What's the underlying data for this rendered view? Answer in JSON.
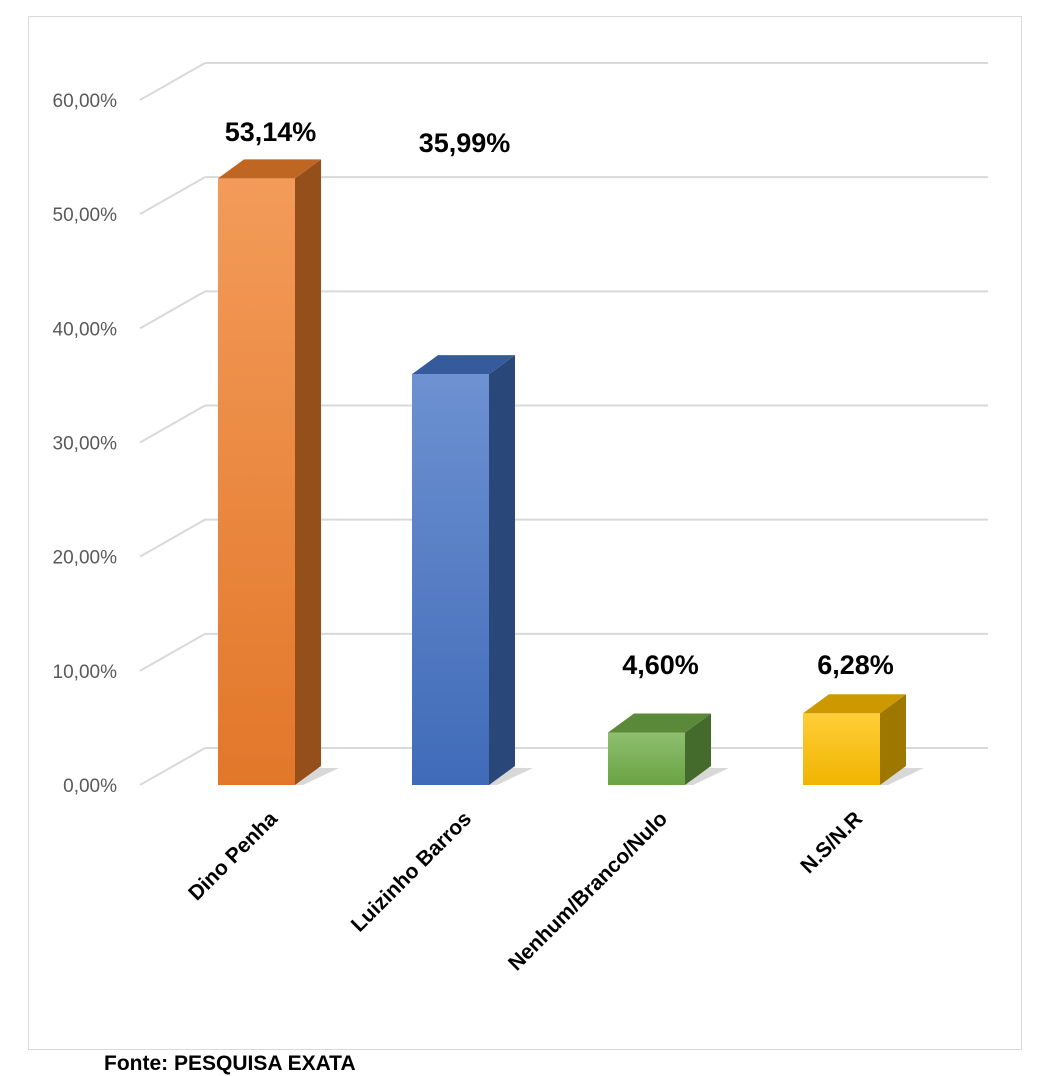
{
  "chart_data": {
    "type": "bar",
    "categories": [
      "Dino Penha",
      "Luizinho Barros",
      "Nenhum/Branco/Nulo",
      "N.S/N.R"
    ],
    "values": [
      53.14,
      35.99,
      4.6,
      6.28
    ],
    "data_labels": [
      "53,14%",
      "35,99%",
      "4,60%",
      "6,28%"
    ],
    "y_ticks": [
      "0,00%",
      "10,00%",
      "20,00%",
      "30,00%",
      "40,00%",
      "50,00%",
      "60,00%"
    ],
    "ylim": [
      0,
      60
    ],
    "grid": true,
    "legend": "none",
    "colors": [
      "#F07F2C",
      "#4472C4",
      "#70AD47",
      "#FFC000"
    ]
  },
  "source": "Fonte: PESQUISA EXATA"
}
